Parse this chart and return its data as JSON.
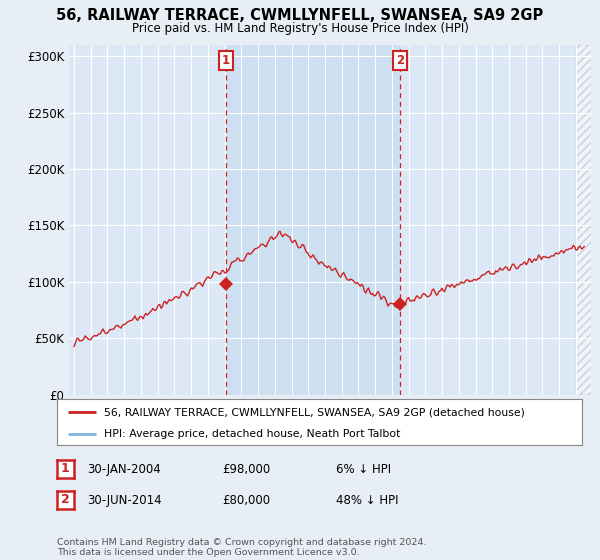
{
  "title": "56, RAILWAY TERRACE, CWMLLYNFELL, SWANSEA, SA9 2GP",
  "subtitle": "Price paid vs. HM Land Registry's House Price Index (HPI)",
  "background_color": "#e8eef5",
  "plot_bg_color": "#dce8f5",
  "ylim": [
    0,
    310000
  ],
  "yticks": [
    0,
    50000,
    100000,
    150000,
    200000,
    250000,
    300000
  ],
  "ytick_labels": [
    "£0",
    "£50K",
    "£100K",
    "£150K",
    "£200K",
    "£250K",
    "£300K"
  ],
  "sale1_date_num": 2004.08,
  "sale1_price": 98000,
  "sale2_date_num": 2014.5,
  "sale2_price": 80000,
  "legend_line1": "56, RAILWAY TERRACE, CWMLLYNFELL, SWANSEA, SA9 2GP (detached house)",
  "legend_line2": "HPI: Average price, detached house, Neath Port Talbot",
  "footer": "Contains HM Land Registry data © Crown copyright and database right 2024.\nThis data is licensed under the Open Government Licence v3.0.",
  "hpi_color": "#7fb4d8",
  "price_color": "#cc2222",
  "vline_color": "#cc2222",
  "marker_color": "#cc2222",
  "shade_color": "#c8ddf0",
  "xmin": 1994.7,
  "xmax": 2025.9
}
